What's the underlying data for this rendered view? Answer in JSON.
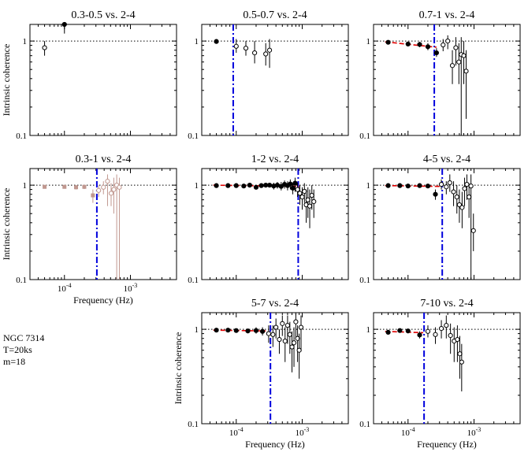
{
  "figure": {
    "source_label": "NGC 7314",
    "segment_label": "T=20ks",
    "bins_label": "m=18",
    "ylabel": "Intrinsic coherence",
    "xlabel": "Frequency (Hz)",
    "x_tick_labels": [
      "10^-4",
      "10^-3"
    ],
    "y_tick_labels": [
      "0.1",
      "1"
    ]
  },
  "colors": {
    "filled": "#000000",
    "open": "#000000",
    "faded": "#c0978f",
    "model": "#e00000",
    "vline": "#0000dd",
    "unity": "#000000"
  },
  "chart_data": [
    {
      "type": "scatter",
      "title": "0.3-0.5 vs. 2-4",
      "xlabel": "",
      "ylabel": "Intrinsic coherence",
      "xscale": "log",
      "yscale": "log",
      "xlim": [
        3e-05,
        0.005
      ],
      "ylim": [
        0.1,
        1.5
      ],
      "points": [
        {
          "x": 5e-05,
          "y": 0.85,
          "lo": 0.7,
          "hi": 1.0,
          "kind": "open"
        },
        {
          "x": 0.0001,
          "y": 1.5,
          "lo": 1.2,
          "hi": 1.5,
          "kind": "filled"
        }
      ],
      "model": null,
      "vline": null
    },
    {
      "type": "scatter",
      "title": "0.5-0.7 vs. 2-4",
      "xlabel": "",
      "ylabel": "",
      "xscale": "log",
      "yscale": "log",
      "xlim": [
        3e-05,
        0.005
      ],
      "ylim": [
        0.1,
        1.5
      ],
      "points": [
        {
          "x": 5e-05,
          "y": 0.99,
          "lo": 0.97,
          "hi": 1.01,
          "kind": "filled"
        },
        {
          "x": 0.0001,
          "y": 0.88,
          "lo": 0.75,
          "hi": 1.05,
          "kind": "open"
        },
        {
          "x": 0.00014,
          "y": 0.84,
          "lo": 0.7,
          "hi": 1.0,
          "kind": "open"
        },
        {
          "x": 0.00019,
          "y": 0.75,
          "lo": 0.58,
          "hi": 1.0,
          "kind": "open"
        },
        {
          "x": 0.00028,
          "y": 0.73,
          "lo": 0.55,
          "hi": 0.95,
          "kind": "open"
        },
        {
          "x": 0.00032,
          "y": 0.8,
          "lo": 0.52,
          "hi": 1.05,
          "kind": "open"
        }
      ],
      "model": null,
      "vline": 9e-05
    },
    {
      "type": "scatter",
      "title": "0.7-1 vs. 2-4",
      "xlabel": "",
      "ylabel": "",
      "xscale": "log",
      "yscale": "log",
      "xlim": [
        3e-05,
        0.005
      ],
      "ylim": [
        0.1,
        1.5
      ],
      "points": [
        {
          "x": 5e-05,
          "y": 0.97,
          "lo": 0.94,
          "hi": 1.0,
          "kind": "filled"
        },
        {
          "x": 0.0001,
          "y": 0.93,
          "lo": 0.89,
          "hi": 0.97,
          "kind": "filled"
        },
        {
          "x": 0.00015,
          "y": 0.92,
          "lo": 0.86,
          "hi": 0.98,
          "kind": "filled"
        },
        {
          "x": 0.0002,
          "y": 0.87,
          "lo": 0.8,
          "hi": 0.95,
          "kind": "filled"
        },
        {
          "x": 0.00027,
          "y": 0.75,
          "lo": 0.68,
          "hi": 0.84,
          "kind": "filled"
        },
        {
          "x": 0.00034,
          "y": 0.91,
          "lo": 0.78,
          "hi": 1.05,
          "kind": "open"
        },
        {
          "x": 0.0004,
          "y": 1.0,
          "lo": 0.82,
          "hi": 1.15,
          "kind": "open"
        },
        {
          "x": 0.00047,
          "y": 0.55,
          "lo": 0.35,
          "hi": 0.8,
          "kind": "open"
        },
        {
          "x": 0.00053,
          "y": 0.85,
          "lo": 0.55,
          "hi": 1.1,
          "kind": "open"
        },
        {
          "x": 0.00059,
          "y": 0.6,
          "lo": 0.35,
          "hi": 0.95,
          "kind": "open"
        },
        {
          "x": 0.00064,
          "y": 0.72,
          "lo": 0.1,
          "hi": 1.1,
          "kind": "open"
        },
        {
          "x": 0.0007,
          "y": 0.7,
          "lo": 0.35,
          "hi": 1.0,
          "kind": "open"
        },
        {
          "x": 0.00076,
          "y": 0.48,
          "lo": 0.15,
          "hi": 0.8,
          "kind": "open"
        }
      ],
      "model": [
        [
          4.5e-05,
          0.98
        ],
        [
          0.00027,
          0.86
        ]
      ],
      "vline": 0.00025
    },
    {
      "type": "scatter",
      "title": "0.3-1 vs. 2-4",
      "xlabel": "Frequency (Hz)",
      "ylabel": "Intrinsic coherence",
      "xscale": "log",
      "yscale": "log",
      "xlim": [
        3e-05,
        0.005
      ],
      "ylim": [
        0.1,
        1.5
      ],
      "points": [
        {
          "x": 5e-05,
          "y": 0.96,
          "lo": 0.93,
          "hi": 0.99,
          "kind": "faded-filled"
        },
        {
          "x": 0.0001,
          "y": 0.96,
          "lo": 0.92,
          "hi": 1.0,
          "kind": "faded-filled"
        },
        {
          "x": 0.00015,
          "y": 0.95,
          "lo": 0.9,
          "hi": 1.0,
          "kind": "faded-filled"
        },
        {
          "x": 0.0002,
          "y": 0.96,
          "lo": 0.91,
          "hi": 1.01,
          "kind": "faded-filled"
        },
        {
          "x": 0.00027,
          "y": 0.78,
          "lo": 0.65,
          "hi": 0.9,
          "kind": "faded-filled"
        },
        {
          "x": 0.00033,
          "y": 0.88,
          "lo": 0.75,
          "hi": 1.0,
          "kind": "faded-open"
        },
        {
          "x": 0.00039,
          "y": 0.95,
          "lo": 0.8,
          "hi": 1.1,
          "kind": "faded-open"
        },
        {
          "x": 0.00045,
          "y": 1.1,
          "lo": 0.6,
          "hi": 1.3,
          "kind": "faded-open"
        },
        {
          "x": 0.00051,
          "y": 0.82,
          "lo": 0.6,
          "hi": 1.05,
          "kind": "faded-open"
        },
        {
          "x": 0.00056,
          "y": 0.9,
          "lo": 0.5,
          "hi": 1.2,
          "kind": "faded-open"
        },
        {
          "x": 0.00062,
          "y": 1.0,
          "lo": 0.1,
          "hi": 1.3,
          "kind": "faded-open"
        },
        {
          "x": 0.00068,
          "y": 0.95,
          "lo": 0.1,
          "hi": 1.2,
          "kind": "faded-open"
        }
      ],
      "model": null,
      "vline": 0.00031
    },
    {
      "type": "scatter",
      "title": "1-2 vs. 2-4",
      "xlabel": "",
      "ylabel": "",
      "xscale": "log",
      "yscale": "log",
      "xlim": [
        3e-05,
        0.005
      ],
      "ylim": [
        0.1,
        1.5
      ],
      "points": [
        {
          "x": 5e-05,
          "y": 0.99,
          "lo": 0.97,
          "hi": 1.01,
          "kind": "filled"
        },
        {
          "x": 7.5e-05,
          "y": 0.99,
          "lo": 0.97,
          "hi": 1.01,
          "kind": "filled"
        },
        {
          "x": 0.0001,
          "y": 0.99,
          "lo": 0.96,
          "hi": 1.02,
          "kind": "filled"
        },
        {
          "x": 0.00013,
          "y": 0.98,
          "lo": 0.95,
          "hi": 1.01,
          "kind": "filled"
        },
        {
          "x": 0.00016,
          "y": 1.0,
          "lo": 0.97,
          "hi": 1.03,
          "kind": "filled"
        },
        {
          "x": 0.0002,
          "y": 0.95,
          "lo": 0.91,
          "hi": 0.99,
          "kind": "filled"
        },
        {
          "x": 0.00024,
          "y": 0.99,
          "lo": 0.95,
          "hi": 1.03,
          "kind": "filled"
        },
        {
          "x": 0.00028,
          "y": 1.0,
          "lo": 0.96,
          "hi": 1.05,
          "kind": "filled"
        },
        {
          "x": 0.00032,
          "y": 1.0,
          "lo": 0.95,
          "hi": 1.05,
          "kind": "filled"
        },
        {
          "x": 0.00037,
          "y": 0.98,
          "lo": 0.9,
          "hi": 1.06,
          "kind": "filled"
        },
        {
          "x": 0.00042,
          "y": 1.0,
          "lo": 0.92,
          "hi": 1.08,
          "kind": "filled"
        },
        {
          "x": 0.00048,
          "y": 0.97,
          "lo": 0.88,
          "hi": 1.08,
          "kind": "filled"
        },
        {
          "x": 0.00054,
          "y": 1.02,
          "lo": 0.92,
          "hi": 1.12,
          "kind": "filled"
        },
        {
          "x": 0.0006,
          "y": 0.99,
          "lo": 0.88,
          "hi": 1.1,
          "kind": "filled"
        },
        {
          "x": 0.00066,
          "y": 1.03,
          "lo": 0.9,
          "hi": 1.15,
          "kind": "filled"
        },
        {
          "x": 0.00072,
          "y": 0.93,
          "lo": 0.8,
          "hi": 1.05,
          "kind": "filled"
        },
        {
          "x": 0.00078,
          "y": 1.05,
          "lo": 0.85,
          "hi": 1.2,
          "kind": "filled"
        },
        {
          "x": 0.00085,
          "y": 0.9,
          "lo": 0.75,
          "hi": 1.05,
          "kind": "open"
        },
        {
          "x": 0.00092,
          "y": 0.82,
          "lo": 0.62,
          "hi": 1.0,
          "kind": "open"
        },
        {
          "x": 0.001,
          "y": 0.75,
          "lo": 0.55,
          "hi": 0.95,
          "kind": "open"
        },
        {
          "x": 0.00108,
          "y": 0.86,
          "lo": 0.65,
          "hi": 1.05,
          "kind": "open"
        },
        {
          "x": 0.00115,
          "y": 0.62,
          "lo": 0.4,
          "hi": 0.9,
          "kind": "open"
        },
        {
          "x": 0.00122,
          "y": 0.7,
          "lo": 0.45,
          "hi": 0.95,
          "kind": "open"
        },
        {
          "x": 0.0013,
          "y": 0.6,
          "lo": 0.35,
          "hi": 0.9,
          "kind": "open"
        },
        {
          "x": 0.0014,
          "y": 0.78,
          "lo": 0.55,
          "hi": 1.0,
          "kind": "open"
        },
        {
          "x": 0.0015,
          "y": 0.67,
          "lo": 0.45,
          "hi": 0.9,
          "kind": "open"
        }
      ],
      "model": [
        [
          4.5e-05,
          1.0
        ],
        [
          0.0009,
          0.97
        ]
      ],
      "vline": 0.00087
    },
    {
      "type": "scatter",
      "title": "4-5 vs. 2-4",
      "xlabel": "",
      "ylabel": "",
      "xscale": "log",
      "yscale": "log",
      "xlim": [
        3e-05,
        0.005
      ],
      "ylim": [
        0.1,
        1.5
      ],
      "points": [
        {
          "x": 5e-05,
          "y": 0.99,
          "lo": 0.97,
          "hi": 1.01,
          "kind": "filled"
        },
        {
          "x": 7.5e-05,
          "y": 0.99,
          "lo": 0.96,
          "hi": 1.02,
          "kind": "filled"
        },
        {
          "x": 0.0001,
          "y": 0.98,
          "lo": 0.95,
          "hi": 1.01,
          "kind": "filled"
        },
        {
          "x": 0.00015,
          "y": 0.99,
          "lo": 0.95,
          "hi": 1.03,
          "kind": "filled"
        },
        {
          "x": 0.0002,
          "y": 0.98,
          "lo": 0.93,
          "hi": 1.03,
          "kind": "filled"
        },
        {
          "x": 0.00026,
          "y": 0.8,
          "lo": 0.7,
          "hi": 0.9,
          "kind": "filled"
        },
        {
          "x": 0.00032,
          "y": 1.02,
          "lo": 0.9,
          "hi": 1.15,
          "kind": "open"
        },
        {
          "x": 0.00038,
          "y": 0.96,
          "lo": 0.8,
          "hi": 1.1,
          "kind": "open"
        },
        {
          "x": 0.00043,
          "y": 1.06,
          "lo": 0.85,
          "hi": 1.3,
          "kind": "open"
        },
        {
          "x": 0.00049,
          "y": 0.85,
          "lo": 0.6,
          "hi": 1.1,
          "kind": "open"
        },
        {
          "x": 0.00055,
          "y": 0.75,
          "lo": 0.5,
          "hi": 1.0,
          "kind": "open"
        },
        {
          "x": 0.0006,
          "y": 0.62,
          "lo": 0.4,
          "hi": 0.9,
          "kind": "open"
        },
        {
          "x": 0.00066,
          "y": 0.58,
          "lo": 0.35,
          "hi": 0.85,
          "kind": "open"
        },
        {
          "x": 0.00072,
          "y": 0.92,
          "lo": 0.6,
          "hi": 1.2,
          "kind": "open"
        },
        {
          "x": 0.00078,
          "y": 1.02,
          "lo": 0.7,
          "hi": 1.3,
          "kind": "open"
        },
        {
          "x": 0.00084,
          "y": 0.75,
          "lo": 0.45,
          "hi": 1.05,
          "kind": "open"
        },
        {
          "x": 0.0009,
          "y": 0.98,
          "lo": 0.1,
          "hi": 1.3,
          "kind": "open"
        },
        {
          "x": 0.00098,
          "y": 0.33,
          "lo": 0.2,
          "hi": 0.5,
          "kind": "open"
        }
      ],
      "model": [
        [
          4.5e-05,
          0.99
        ],
        [
          0.00032,
          0.97
        ]
      ],
      "vline": 0.00033
    },
    {
      "type": "scatter",
      "title": "5-7 vs. 2-4",
      "xlabel": "Frequency (Hz)",
      "ylabel": "Intrinsic coherence",
      "xscale": "log",
      "yscale": "log",
      "xlim": [
        3e-05,
        0.005
      ],
      "ylim": [
        0.1,
        1.5
      ],
      "points": [
        {
          "x": 5e-05,
          "y": 0.98,
          "lo": 0.96,
          "hi": 1.0,
          "kind": "filled"
        },
        {
          "x": 7.5e-05,
          "y": 0.98,
          "lo": 0.95,
          "hi": 1.01,
          "kind": "filled"
        },
        {
          "x": 0.0001,
          "y": 0.97,
          "lo": 0.93,
          "hi": 1.01,
          "kind": "filled"
        },
        {
          "x": 0.00015,
          "y": 0.96,
          "lo": 0.91,
          "hi": 1.01,
          "kind": "filled"
        },
        {
          "x": 0.0002,
          "y": 0.97,
          "lo": 0.9,
          "hi": 1.05,
          "kind": "filled"
        },
        {
          "x": 0.00025,
          "y": 0.95,
          "lo": 0.86,
          "hi": 1.05,
          "kind": "filled"
        },
        {
          "x": 0.00031,
          "y": 0.9,
          "lo": 0.72,
          "hi": 1.1,
          "kind": "open"
        },
        {
          "x": 0.00036,
          "y": 0.88,
          "lo": 0.65,
          "hi": 1.1,
          "kind": "open"
        },
        {
          "x": 0.0004,
          "y": 1.05,
          "lo": 0.8,
          "hi": 1.3,
          "kind": "open"
        },
        {
          "x": 0.00045,
          "y": 0.78,
          "lo": 0.55,
          "hi": 1.0,
          "kind": "open"
        },
        {
          "x": 0.0005,
          "y": 1.15,
          "lo": 0.85,
          "hi": 1.4,
          "kind": "open"
        },
        {
          "x": 0.00055,
          "y": 0.75,
          "lo": 0.45,
          "hi": 1.05,
          "kind": "open"
        },
        {
          "x": 0.0006,
          "y": 1.1,
          "lo": 0.7,
          "hi": 1.4,
          "kind": "open"
        },
        {
          "x": 0.00065,
          "y": 0.88,
          "lo": 0.55,
          "hi": 1.2,
          "kind": "open"
        },
        {
          "x": 0.0007,
          "y": 0.65,
          "lo": 0.35,
          "hi": 0.95,
          "kind": "open"
        },
        {
          "x": 0.00075,
          "y": 0.72,
          "lo": 0.4,
          "hi": 1.05,
          "kind": "open"
        },
        {
          "x": 0.0008,
          "y": 1.2,
          "lo": 0.8,
          "hi": 1.45,
          "kind": "open"
        },
        {
          "x": 0.00085,
          "y": 0.8,
          "lo": 0.45,
          "hi": 1.1,
          "kind": "open"
        },
        {
          "x": 0.0009,
          "y": 0.6,
          "lo": 0.3,
          "hi": 0.9,
          "kind": "open"
        },
        {
          "x": 0.00096,
          "y": 1.05,
          "lo": 0.6,
          "hi": 1.4,
          "kind": "open"
        }
      ],
      "model": [
        [
          4.5e-05,
          0.98
        ],
        [
          0.00028,
          0.96
        ]
      ],
      "vline": 0.00033
    },
    {
      "type": "scatter",
      "title": "7-10 vs. 2-4",
      "xlabel": "Frequency (Hz)",
      "ylabel": "",
      "xscale": "log",
      "yscale": "log",
      "xlim": [
        3e-05,
        0.005
      ],
      "ylim": [
        0.1,
        1.5
      ],
      "points": [
        {
          "x": 5e-05,
          "y": 0.93,
          "lo": 0.9,
          "hi": 0.96,
          "kind": "filled"
        },
        {
          "x": 7.5e-05,
          "y": 0.97,
          "lo": 0.94,
          "hi": 1.0,
          "kind": "filled"
        },
        {
          "x": 0.0001,
          "y": 0.96,
          "lo": 0.92,
          "hi": 1.0,
          "kind": "filled"
        },
        {
          "x": 0.00015,
          "y": 0.87,
          "lo": 0.8,
          "hi": 0.95,
          "kind": "filled"
        },
        {
          "x": 0.0002,
          "y": 0.95,
          "lo": 0.82,
          "hi": 1.1,
          "kind": "open"
        },
        {
          "x": 0.00026,
          "y": 0.88,
          "lo": 0.7,
          "hi": 1.05,
          "kind": "open"
        },
        {
          "x": 0.00032,
          "y": 1.02,
          "lo": 0.8,
          "hi": 1.25,
          "kind": "open"
        },
        {
          "x": 0.00038,
          "y": 1.1,
          "lo": 0.8,
          "hi": 1.4,
          "kind": "open"
        },
        {
          "x": 0.00044,
          "y": 0.86,
          "lo": 0.55,
          "hi": 1.15,
          "kind": "open"
        },
        {
          "x": 0.0005,
          "y": 0.75,
          "lo": 0.45,
          "hi": 1.05,
          "kind": "open"
        },
        {
          "x": 0.00056,
          "y": 0.78,
          "lo": 0.45,
          "hi": 1.1,
          "kind": "open"
        },
        {
          "x": 0.00061,
          "y": 0.55,
          "lo": 0.3,
          "hi": 0.85,
          "kind": "open"
        },
        {
          "x": 0.00065,
          "y": 0.45,
          "lo": 0.22,
          "hi": 0.7,
          "kind": "open"
        }
      ],
      "model": [
        [
          4.5e-05,
          0.95
        ],
        [
          0.00017,
          0.92
        ]
      ],
      "vline": 0.000175
    }
  ]
}
